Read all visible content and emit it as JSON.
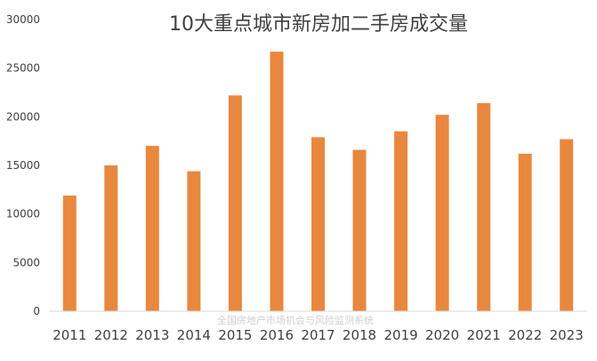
{
  "chart_data": {
    "type": "bar",
    "title": "10大重点城市新房加二手房成交量",
    "categories": [
      "2011",
      "2012",
      "2013",
      "2014",
      "2015",
      "2016",
      "2017",
      "2018",
      "2019",
      "2020",
      "2021",
      "2022",
      "2023"
    ],
    "values": [
      11900,
      15000,
      17000,
      14400,
      22200,
      26700,
      17900,
      16600,
      18500,
      20200,
      21400,
      16200,
      17700
    ],
    "ylim": [
      0,
      30000
    ],
    "yticks": [
      0,
      5000,
      10000,
      15000,
      20000,
      25000,
      30000
    ],
    "grid": false,
    "bar_color": "#E8883F",
    "watermark": "全国房地产市场机会与风险监测系统"
  }
}
